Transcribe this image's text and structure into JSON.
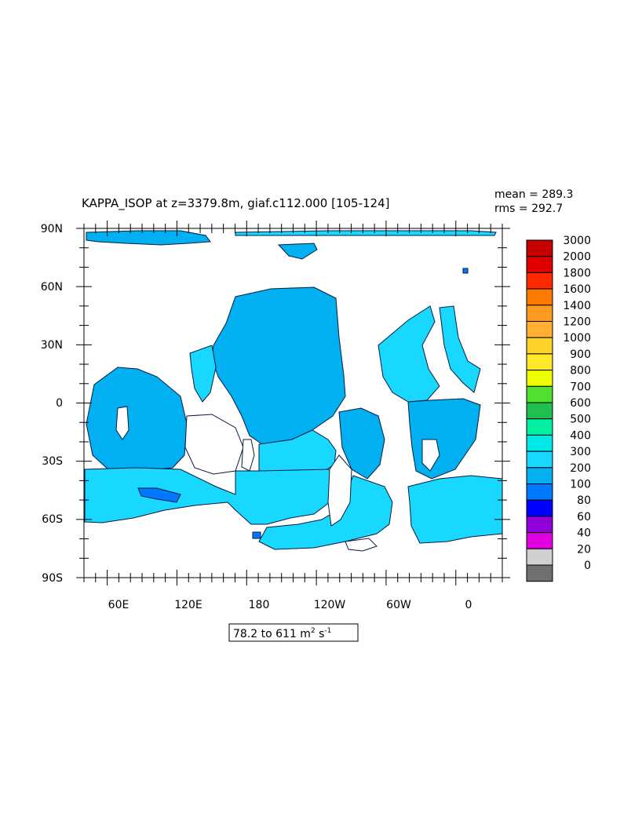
{
  "title": "KAPPA_ISOP at z=3379.8m, giaf.c112.000 [105-124]",
  "stats": {
    "mean": "mean = 289.3",
    "rms": "rms = 292.7"
  },
  "range_label": {
    "prefix": "78.2 to 611 m",
    "exp1": "2",
    "mid": " s",
    "exp2": "-1"
  },
  "chart_data": {
    "type": "heatmap",
    "title": "KAPPA_ISOP at z=3379.8m, giaf.c112.000 [105-124]",
    "variable": "KAPPA_ISOP",
    "depth": "z=3379.8m",
    "case": "giaf.c112.000",
    "years": "105-124",
    "mean": 289.3,
    "rms": 292.7,
    "value_range": [
      78.2,
      611
    ],
    "units": "m2 s-1",
    "x_ticks": [
      "60E",
      "120E",
      "180",
      "120W",
      "60W",
      "0"
    ],
    "y_ticks": [
      "90N",
      "60N",
      "30N",
      "0",
      "30S",
      "60S",
      "90S"
    ],
    "colorbar": {
      "levels": [
        "3000",
        "2000",
        "1800",
        "1600",
        "1400",
        "1200",
        "1000",
        "900",
        "800",
        "700",
        "600",
        "500",
        "400",
        "300",
        "200",
        "100",
        "80",
        "60",
        "40",
        "20",
        "0"
      ],
      "colors": [
        "#c40000",
        "#e00000",
        "#ff2a00",
        "#ff7a00",
        "#ff9a20",
        "#ffb030",
        "#ffd22a",
        "#ffe828",
        "#f0ff00",
        "#50e030",
        "#20c050",
        "#00f0a0",
        "#00e8e8",
        "#18d8ff",
        "#00b0f0",
        "#0078ff",
        "#0000ff",
        "#9000d8",
        "#e000e0",
        "#d0d0d0",
        "#707070"
      ]
    }
  }
}
